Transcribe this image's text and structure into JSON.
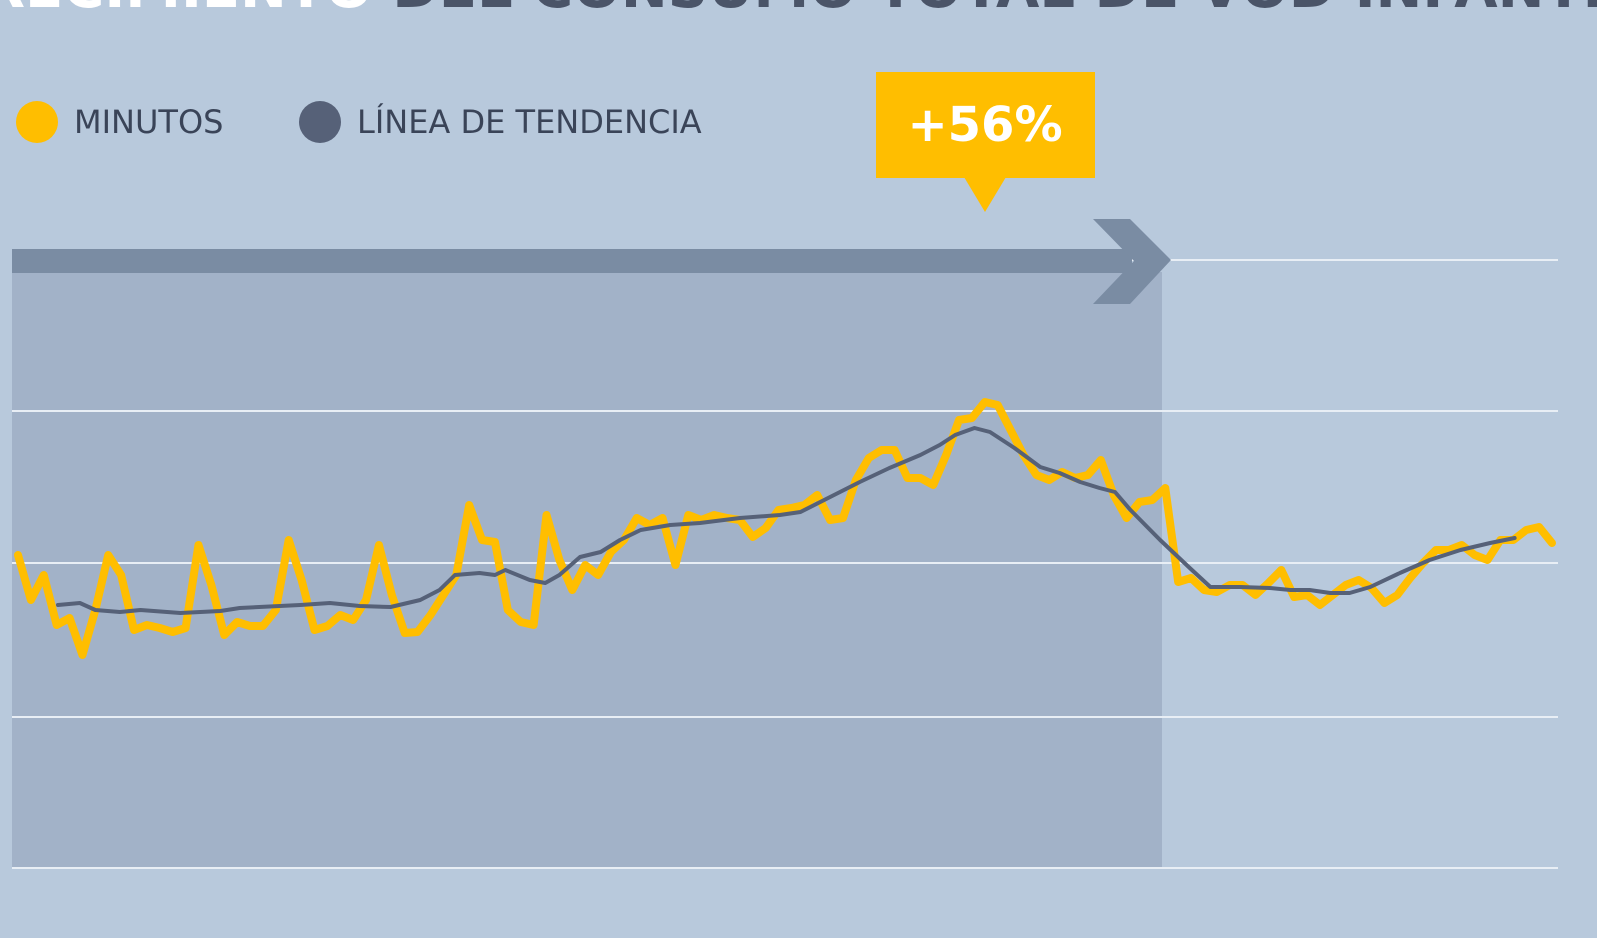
{
  "chart_data": {
    "type": "line",
    "title_highlight": "CRECIMIENTO",
    "title": "DEL CONSUMO TOTAL DE VOD INFANTIL",
    "annotation": "+56%",
    "xlim": [
      0,
      119
    ],
    "ylim": [
      0,
      608
    ],
    "yticks": [
      0,
      151,
      305,
      457,
      608
    ],
    "grid": true,
    "series": [
      {
        "name": "MINUTOS",
        "color": "#ffbe00",
        "values": [
          313,
          268,
          293,
          243,
          250,
          213,
          258,
          313,
          293,
          238,
          243,
          240,
          236,
          240,
          323,
          283,
          233,
          246,
          242,
          242,
          258,
          328,
          288,
          238,
          242,
          253,
          248,
          268,
          323,
          273,
          235,
          236,
          253,
          273,
          293,
          363,
          328,
          326,
          258,
          246,
          243,
          353,
          308,
          278,
          303,
          293,
          316,
          328,
          350,
          343,
          350,
          303,
          353,
          348,
          353,
          350,
          348,
          331,
          340,
          358,
          360,
          363,
          373,
          348,
          350,
          388,
          410,
          418,
          418,
          390,
          390,
          383,
          413,
          448,
          450,
          466,
          463,
          438,
          413,
          393,
          388,
          396,
          390,
          393,
          408,
          373,
          350,
          366,
          368,
          380,
          286,
          290,
          278,
          276,
          283,
          283,
          273,
          285,
          298,
          271,
          273,
          263,
          273,
          283,
          288,
          280,
          265,
          273,
          290,
          305,
          318,
          318,
          323,
          313,
          308,
          328,
          328,
          338,
          341,
          325
        ]
      },
      {
        "name": "LÍNEA DE TENDENCIA",
        "color": "#566178",
        "x": [
          3.1,
          4.8,
          6.0,
          7.9,
          9.5,
          12.6,
          15.7,
          17.2,
          21.9,
          24.2,
          26.5,
          28.9,
          31.2,
          32.7,
          33.9,
          35.8,
          37.0,
          37.8,
          39.7,
          40.9,
          42.0,
          43.6,
          45.2,
          46.7,
          48.3,
          50.6,
          52.9,
          56.0,
          59.1,
          60.7,
          63.0,
          65.3,
          67.6,
          70.0,
          71.5,
          72.7,
          74.2,
          75.4,
          77.3,
          79.3,
          80.8,
          82.4,
          83.9,
          85.1,
          86.3,
          88.6,
          90.9,
          92.5,
          94.8,
          97.1,
          98.7,
          100.2,
          101.8,
          103.3,
          104.9,
          107.2,
          109.5,
          111.9,
          114.2,
          116.1
        ],
        "values": [
          263,
          265,
          258,
          256,
          258,
          255,
          257,
          260,
          263,
          265,
          262,
          261,
          268,
          278,
          293,
          295,
          293,
          298,
          288,
          285,
          293,
          311,
          316,
          328,
          338,
          343,
          345,
          350,
          353,
          356,
          371,
          386,
          400,
          413,
          423,
          433,
          440,
          436,
          420,
          401,
          395,
          386,
          380,
          376,
          358,
          328,
          300,
          281,
          281,
          280,
          278,
          278,
          275,
          275,
          281,
          295,
          308,
          318,
          325,
          330
        ]
      }
    ]
  }
}
